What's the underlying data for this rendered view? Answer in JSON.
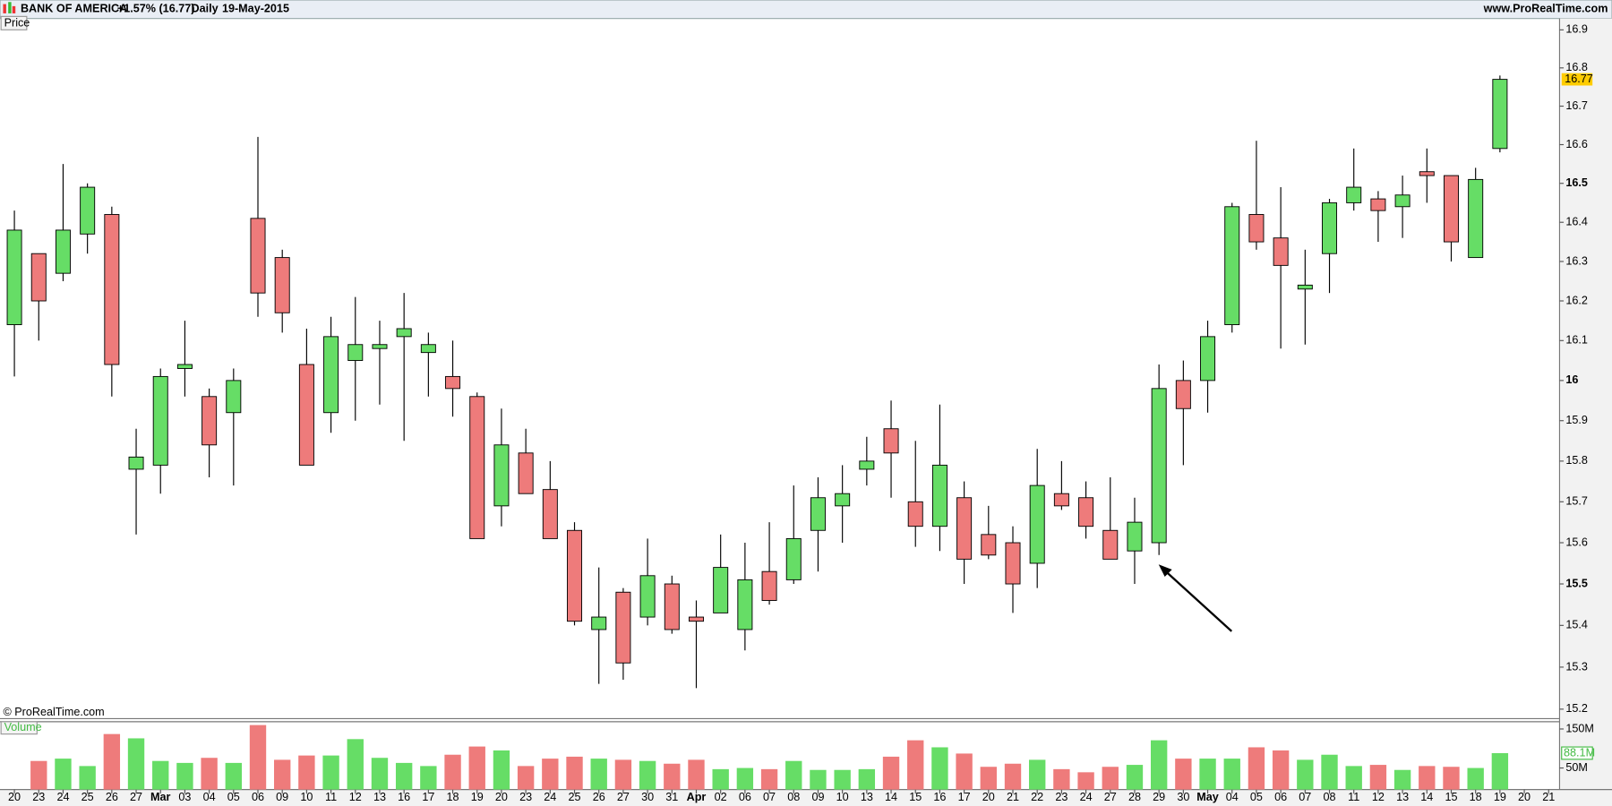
{
  "chart_data": {
    "type": "candlestick",
    "title": "BANK OF AMERICA",
    "change": "+1.57% (16.77)",
    "period": "Daily",
    "date": "19-May-2015",
    "source": "www.ProRealTime.com",
    "panel_label": "Price",
    "copyright": "© ProRealTime.com",
    "log_scale": true,
    "up_color": "#66dd66",
    "down_color": "#ee7b7b",
    "categories": [
      "20",
      "23",
      "24",
      "25",
      "26",
      "27",
      "Mar",
      "03",
      "04",
      "05",
      "06",
      "09",
      "10",
      "11",
      "12",
      "13",
      "16",
      "17",
      "18",
      "19",
      "20",
      "23",
      "24",
      "25",
      "26",
      "27",
      "30",
      "31",
      "Apr",
      "02",
      "06",
      "07",
      "08",
      "09",
      "10",
      "13",
      "14",
      "15",
      "16",
      "17",
      "20",
      "21",
      "22",
      "23",
      "24",
      "27",
      "28",
      "29",
      "30",
      "May",
      "04",
      "05",
      "06",
      "07",
      "08",
      "11",
      "12",
      "13",
      "14",
      "15",
      "18",
      "19",
      "20",
      "21"
    ],
    "open": [
      16.14,
      16.32,
      16.27,
      16.37,
      16.42,
      15.78,
      15.79,
      16.03,
      15.96,
      15.92,
      16.41,
      16.31,
      16.04,
      15.92,
      16.05,
      16.08,
      16.11,
      16.07,
      16.01,
      15.96,
      15.69,
      15.82,
      15.73,
      15.63,
      15.39,
      15.48,
      15.42,
      15.5,
      15.42,
      15.43,
      15.39,
      15.53,
      15.51,
      15.63,
      15.69,
      15.78,
      15.88,
      15.7,
      15.64,
      15.71,
      15.62,
      15.6,
      15.55,
      15.72,
      15.71,
      15.63,
      15.58,
      15.6,
      16.0,
      16.0,
      16.14,
      16.42,
      16.36,
      16.23,
      16.32,
      16.45,
      16.46,
      16.44,
      16.53,
      16.52,
      16.31,
      16.59,
      null,
      null
    ],
    "high": [
      16.43,
      16.32,
      16.55,
      16.5,
      16.44,
      15.88,
      16.03,
      16.15,
      15.98,
      16.03,
      16.62,
      16.33,
      16.13,
      16.16,
      16.21,
      16.15,
      16.22,
      16.12,
      16.1,
      15.97,
      15.93,
      15.88,
      15.8,
      15.65,
      15.54,
      15.49,
      15.61,
      15.52,
      15.46,
      15.62,
      15.6,
      15.65,
      15.74,
      15.76,
      15.79,
      15.86,
      15.95,
      15.85,
      15.94,
      15.75,
      15.69,
      15.64,
      15.83,
      15.8,
      15.75,
      15.76,
      15.71,
      16.04,
      16.05,
      16.15,
      16.45,
      16.61,
      16.49,
      16.33,
      16.46,
      16.59,
      16.48,
      16.52,
      16.59,
      16.52,
      16.54,
      16.78,
      null,
      null
    ],
    "low": [
      16.01,
      16.1,
      16.25,
      16.32,
      15.96,
      15.62,
      15.72,
      15.96,
      15.76,
      15.74,
      16.16,
      16.12,
      15.79,
      15.87,
      15.9,
      15.94,
      15.85,
      15.96,
      15.91,
      15.61,
      15.64,
      15.72,
      15.61,
      15.4,
      15.26,
      15.27,
      15.4,
      15.38,
      15.25,
      15.43,
      15.34,
      15.45,
      15.5,
      15.53,
      15.6,
      15.74,
      15.71,
      15.59,
      15.58,
      15.5,
      15.56,
      15.43,
      15.49,
      15.68,
      15.61,
      15.56,
      15.5,
      15.57,
      15.79,
      15.92,
      16.12,
      16.33,
      16.08,
      16.09,
      16.22,
      16.43,
      16.35,
      16.36,
      16.45,
      16.3,
      16.31,
      16.58,
      null,
      null
    ],
    "close": [
      16.38,
      16.2,
      16.38,
      16.49,
      16.04,
      15.81,
      16.01,
      16.04,
      15.84,
      16.0,
      16.22,
      16.17,
      15.79,
      16.11,
      16.09,
      16.09,
      16.13,
      16.09,
      15.98,
      15.61,
      15.84,
      15.72,
      15.61,
      15.41,
      15.42,
      15.31,
      15.52,
      15.39,
      15.41,
      15.54,
      15.51,
      15.46,
      15.61,
      15.71,
      15.72,
      15.8,
      15.82,
      15.64,
      15.79,
      15.56,
      15.57,
      15.5,
      15.74,
      15.69,
      15.64,
      15.56,
      15.65,
      15.98,
      15.93,
      16.11,
      16.44,
      16.35,
      16.29,
      16.24,
      16.45,
      16.49,
      16.43,
      16.47,
      16.52,
      16.35,
      16.51,
      16.77,
      null,
      null
    ],
    "ylim": [
      15.18,
      16.93
    ],
    "yticks": [
      15.2,
      15.3,
      15.4,
      15.5,
      15.6,
      15.7,
      15.8,
      15.9,
      16,
      16.1,
      16.2,
      16.3,
      16.4,
      16.5,
      16.6,
      16.7,
      16.8,
      16.9
    ],
    "volume": {
      "label": "Volume",
      "values": [
        null,
        68,
        74,
        55,
        137,
        126,
        68,
        63,
        76,
        63,
        160,
        71,
        82,
        82,
        124,
        76,
        63,
        55,
        84,
        105,
        95,
        55,
        74,
        79,
        74,
        71,
        68,
        61,
        71,
        47,
        50,
        47,
        68,
        45,
        45,
        47,
        79,
        121,
        103,
        87,
        53,
        61,
        71,
        47,
        39,
        53,
        58,
        121,
        74,
        74,
        74,
        103,
        95,
        71,
        84,
        55,
        58,
        45,
        55,
        53,
        50,
        88.1,
        null,
        null
      ],
      "value_labels": [
        null,
        null,
        null,
        null,
        null,
        null,
        null,
        null,
        null,
        null,
        null,
        null,
        null,
        null,
        null,
        null,
        null,
        null,
        null,
        null,
        null,
        null,
        null,
        null,
        null,
        null,
        null,
        null,
        null,
        null,
        null,
        null,
        null,
        null,
        null,
        null,
        null,
        null,
        null,
        null,
        null,
        null,
        null,
        null,
        null,
        null,
        null,
        null,
        null,
        null,
        null,
        null,
        null,
        null,
        null,
        null,
        null,
        null,
        null,
        null,
        null,
        "88.1M",
        null,
        null
      ],
      "ylim": [
        0,
        166
      ],
      "yticks": [
        {
          "value": 50,
          "label": "50M"
        },
        {
          "value": 150,
          "label": "150M"
        }
      ]
    }
  }
}
